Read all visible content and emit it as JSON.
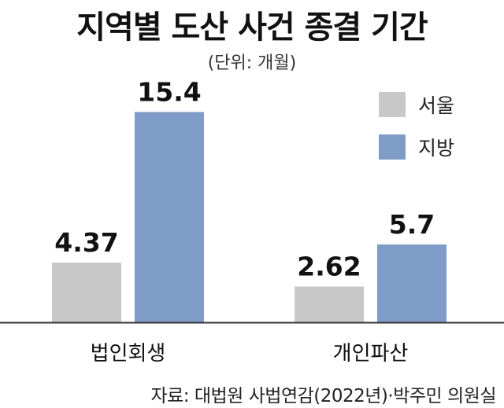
{
  "chart_data": {
    "type": "bar",
    "title": "지역별 도산 사건 종결 기간",
    "subtitle": "(단위: 개월)",
    "categories": [
      "법인회생",
      "개인파산"
    ],
    "series": [
      {
        "name": "서울",
        "values": [
          4.37,
          2.62
        ],
        "value_labels": [
          "4.37",
          "2.62"
        ],
        "color": "#c8c8c8"
      },
      {
        "name": "지방",
        "values": [
          15.4,
          5.7
        ],
        "value_labels": [
          "15.4",
          "5.7"
        ],
        "color": "#7f9cc8"
      }
    ],
    "ylim": [
      0,
      16
    ],
    "grid": false,
    "legend_position": "top-right",
    "source": "자료: 대법원 사법연감(2022년)·박주민 의원실"
  }
}
